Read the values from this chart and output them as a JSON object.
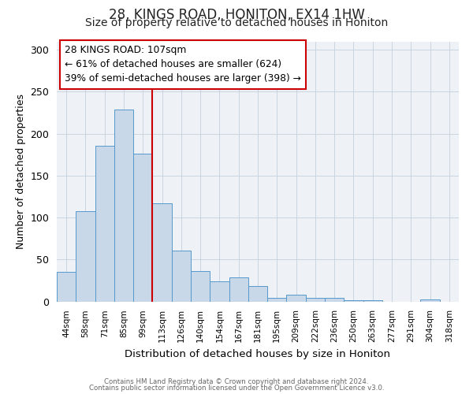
{
  "title": "28, KINGS ROAD, HONITON, EX14 1HW",
  "subtitle": "Size of property relative to detached houses in Honiton",
  "xlabel": "Distribution of detached houses by size in Honiton",
  "ylabel": "Number of detached properties",
  "bar_labels": [
    "44sqm",
    "58sqm",
    "71sqm",
    "85sqm",
    "99sqm",
    "113sqm",
    "126sqm",
    "140sqm",
    "154sqm",
    "167sqm",
    "181sqm",
    "195sqm",
    "209sqm",
    "222sqm",
    "236sqm",
    "250sqm",
    "263sqm",
    "277sqm",
    "291sqm",
    "304sqm",
    "318sqm"
  ],
  "bar_values": [
    35,
    108,
    186,
    229,
    176,
    117,
    61,
    36,
    24,
    29,
    18,
    4,
    8,
    4,
    4,
    1,
    1,
    0,
    0,
    2,
    0
  ],
  "bar_color": "#c8d8e8",
  "bar_edgecolor": "#5599cc",
  "ylim": [
    0,
    310
  ],
  "yticks": [
    0,
    50,
    100,
    150,
    200,
    250,
    300
  ],
  "vline_color": "#cc0000",
  "annotation_title": "28 KINGS ROAD: 107sqm",
  "annotation_line1": "← 61% of detached houses are smaller (624)",
  "annotation_line2": "39% of semi-detached houses are larger (398) →",
  "annotation_box_color": "#ffffff",
  "annotation_box_edgecolor": "#cc0000",
  "footer1": "Contains HM Land Registry data © Crown copyright and database right 2024.",
  "footer2": "Contains public sector information licensed under the Open Government Licence v3.0.",
  "background_color": "#ffffff",
  "axes_facecolor": "#eef2f7",
  "grid_color": "#c5d0dc",
  "title_fontsize": 12,
  "subtitle_fontsize": 10
}
